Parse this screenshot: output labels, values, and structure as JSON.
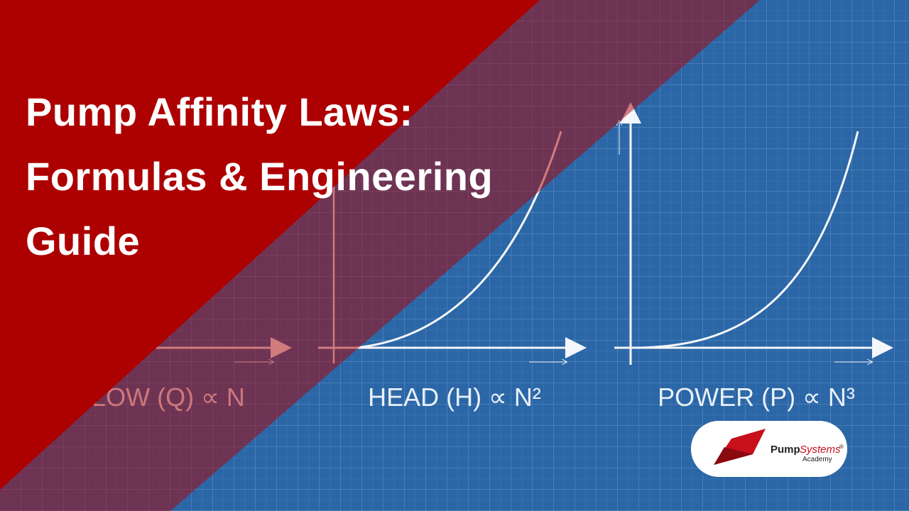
{
  "header": {
    "title_lines": [
      "Pump Affinity Laws:",
      "Formulas & Engineering",
      "Guide"
    ]
  },
  "graphs": [
    {
      "label": "FLOW (Q) ∝ N"
    },
    {
      "label": "HEAD (H) ∝ N²"
    },
    {
      "label": "POWER (P) ∝ N³"
    }
  ],
  "logo": {
    "word1": "Pump",
    "word2": "Systems",
    "mark": "®",
    "subtitle": "Academy"
  }
}
